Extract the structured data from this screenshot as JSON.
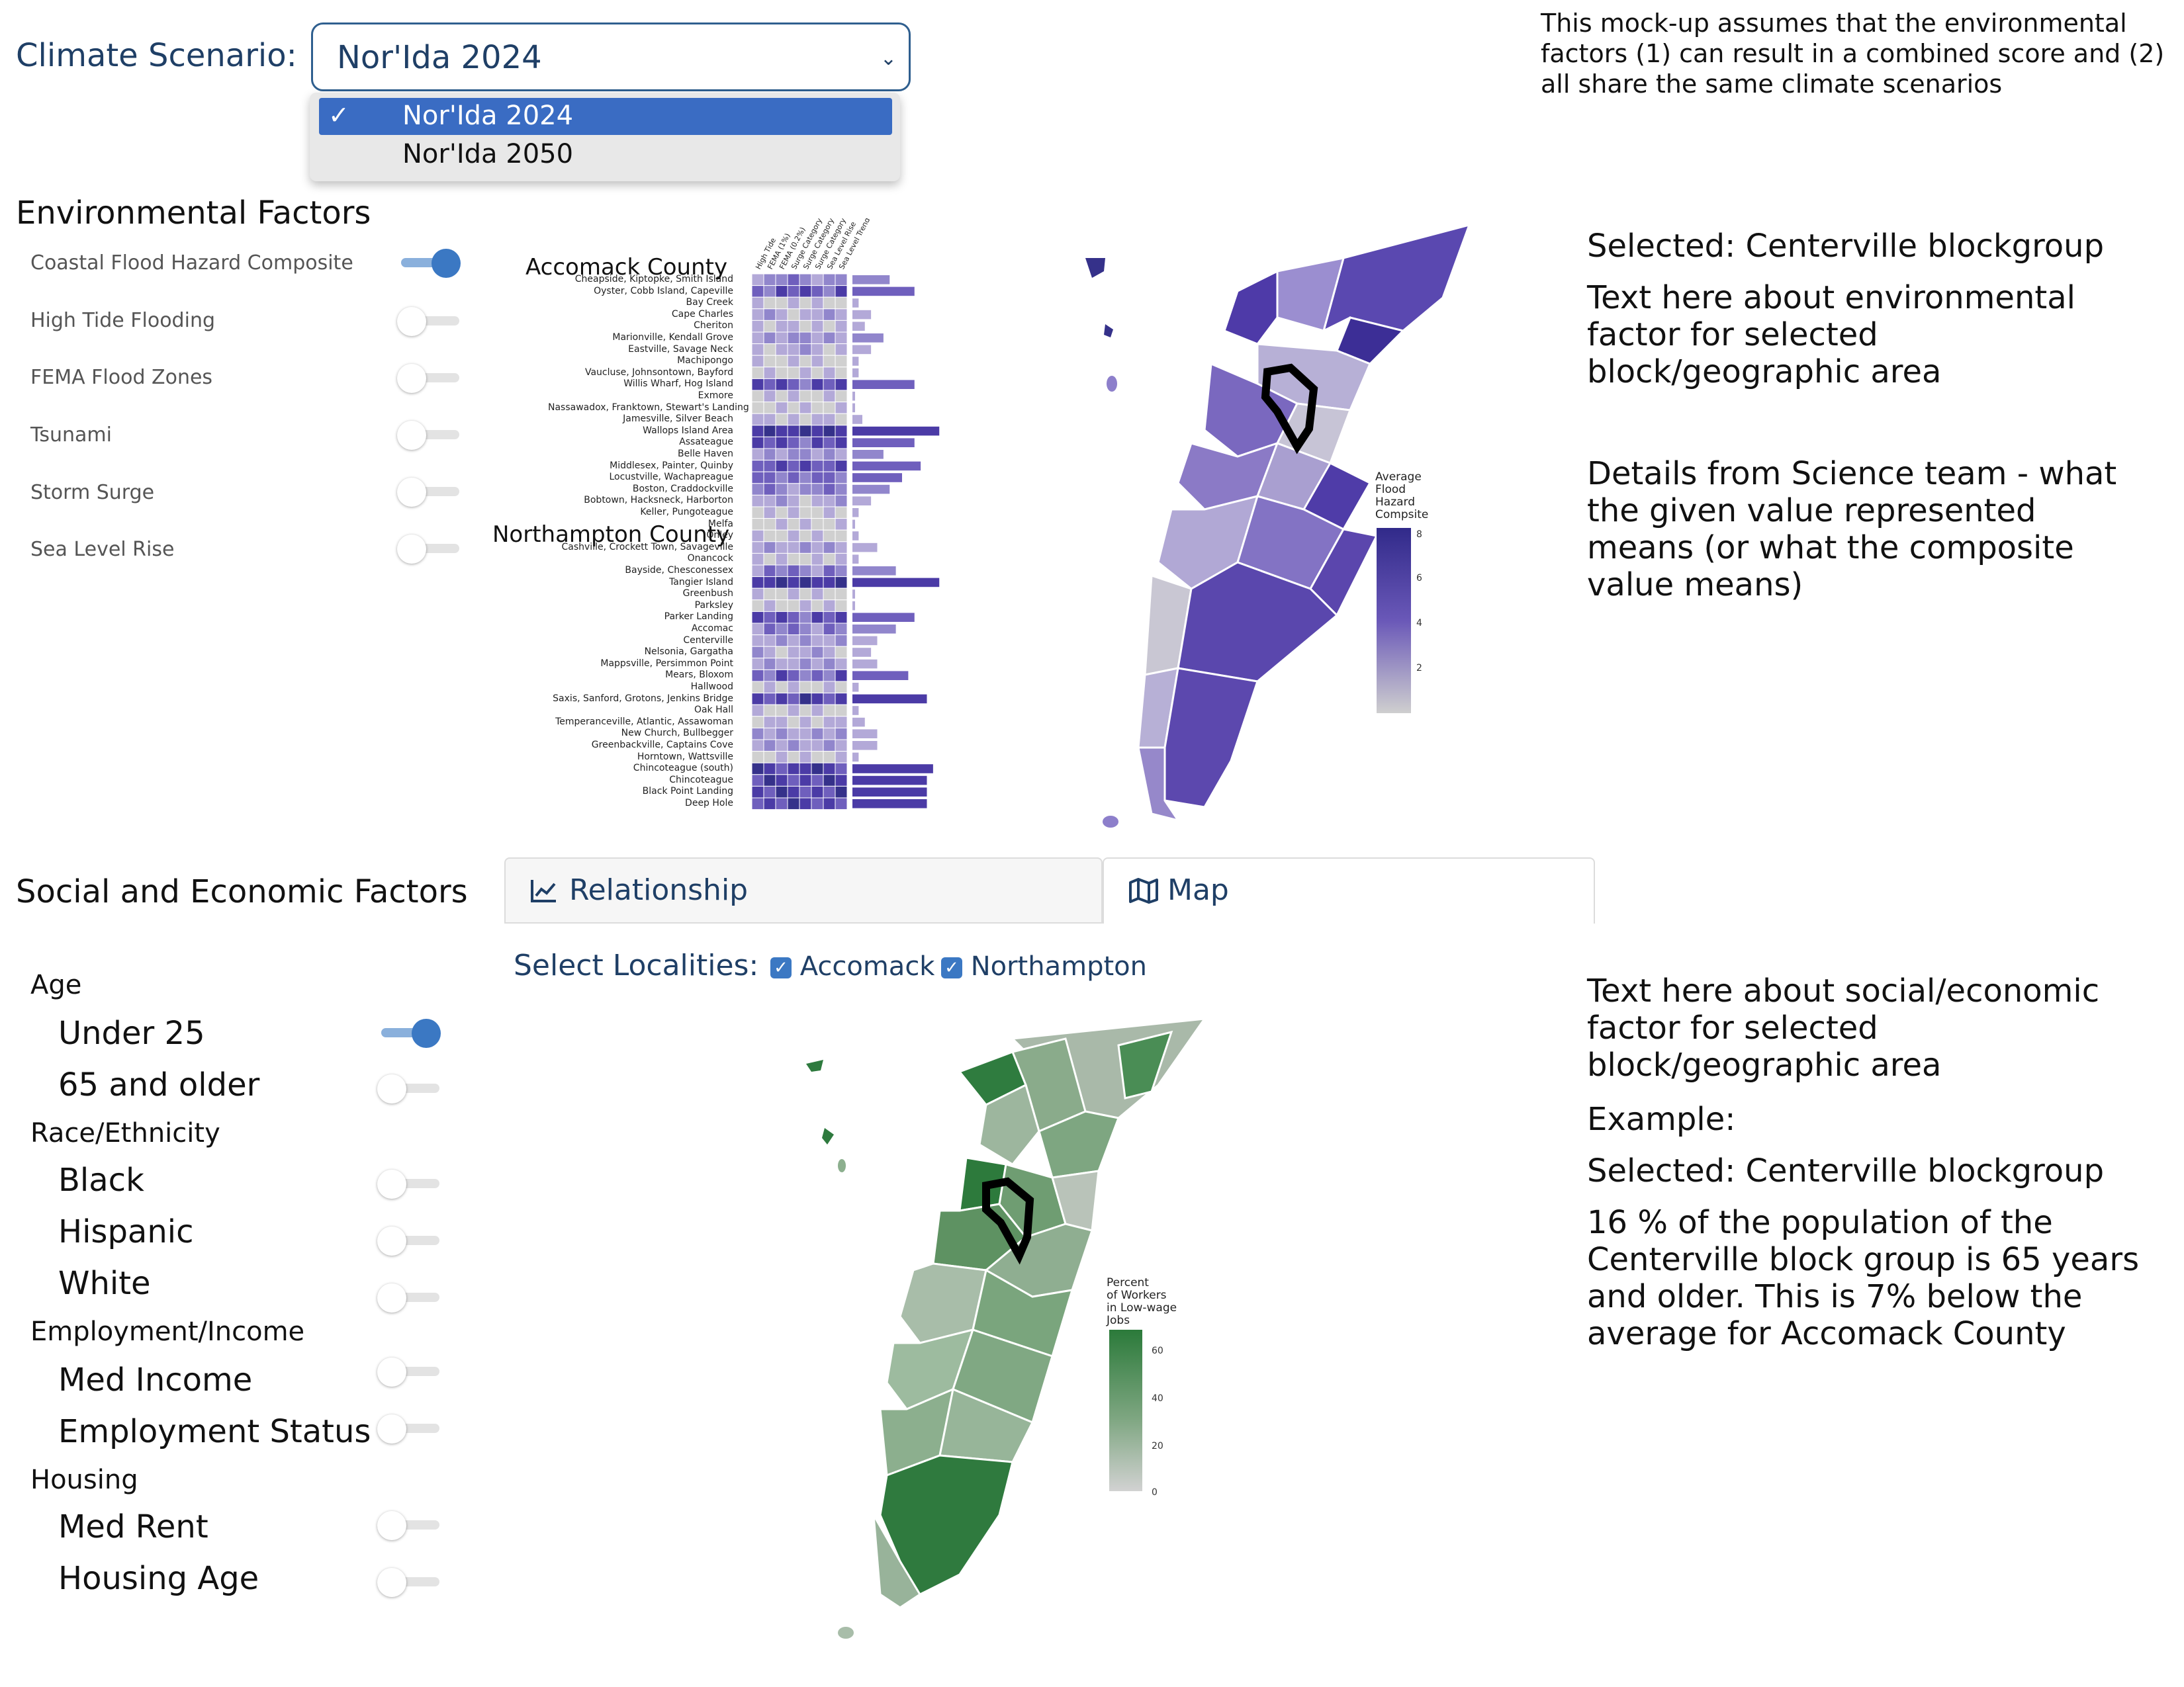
{
  "scenario": {
    "label": "Climate Scenario:",
    "selected": "Nor'Ida 2024",
    "options": [
      "Nor'Ida 2024",
      "Nor'Ida 2050"
    ]
  },
  "note": "This mock-up assumes that the environmental factors (1) can result in a combined score and (2) all share the same climate scenarios",
  "environmental": {
    "title": "Environmental Factors",
    "factors": [
      {
        "label": "Coastal Flood Hazard Composite",
        "on": true
      },
      {
        "label": "High Tide Flooding",
        "on": false
      },
      {
        "label": "FEMA Flood Zones",
        "on": false
      },
      {
        "label": "Tsunami",
        "on": false
      },
      {
        "label": "Storm Surge",
        "on": false
      },
      {
        "label": "Sea Level Rise",
        "on": false
      }
    ],
    "heatmap": {
      "county_a": "Accomack County",
      "county_b": "Northampton County",
      "columns": [
        "High Tide",
        "FEMA (1%)",
        "FEMA (0.2%)",
        "Surge Category 1",
        "Surge Category 2",
        "Surge Category 3",
        "Sea Level Rise",
        "Sea Level Trend"
      ],
      "rows": [
        "Cheapside, Kiptopke, Smith Island",
        "Oyster, Cobb Island, Capeville",
        "Bay Creek",
        "Cape Charles",
        "Cheriton",
        "Marionville, Kendall Grove",
        "Eastville, Savage Neck",
        "Machipongo",
        "Vaucluse, Johnsontown, Bayford",
        "Willis Wharf, Hog Island",
        "Exmore",
        "Nassawadox, Franktown, Stewart's Landing",
        "Jamesville, Silver Beach",
        "Wallops Island Area",
        "Assateague",
        "Belle Haven",
        "Middlesex, Painter, Quinby",
        "Locustville, Wachapreague",
        "Boston, Craddockville",
        "Bobtown, Hacksneck, Harborton",
        "Keller, Pungoteague",
        "Melfa",
        "Onley",
        "Cashville, Crockett Town, Savageville",
        "Onancock",
        "Bayside, Chesconessex",
        "Tangier Island",
        "Greenbush",
        "Parksley",
        "Parker Landing",
        "Accomac",
        "Centerville",
        "Nelsonia, Gargatha",
        "Mappsville, Persimmon Point",
        "Mears, Bloxom",
        "Hallwood",
        "Saxis, Sanford, Grotons, Jenkins Bridge",
        "Oak Hall",
        "Temperanceville, Atlantic, Assawoman",
        "New Church, Bullbegger",
        "Greenbackville, Captains Cove",
        "Horntown, Wattsville",
        "Chincoteague (south)",
        "Chincoteague",
        "Black Point Landing",
        "Deep Hole"
      ],
      "scores": [
        3,
        5,
        0.5,
        1.5,
        1,
        2.5,
        1.5,
        0.5,
        0.5,
        5,
        0.2,
        0.2,
        0.8,
        7,
        5,
        2.5,
        5.5,
        4,
        3,
        1.5,
        0.5,
        0.2,
        0.5,
        2,
        0.5,
        3.5,
        7,
        0.2,
        0.2,
        5,
        3.5,
        2,
        1.5,
        2,
        4.5,
        0.5,
        6,
        0.5,
        1,
        2,
        2,
        0.5,
        6.5,
        6,
        6,
        6
      ]
    },
    "map_legend": {
      "title": [
        "Average",
        "Flood",
        "Hazard",
        "Compsite"
      ],
      "ticks": [
        "8",
        "6",
        "4",
        "2"
      ]
    },
    "right_text": {
      "selected": "Selected: Centerville blockgroup",
      "about": "Text here about environmental factor for selected block/geographic area",
      "details": "Details from Science team - what the given value represented means (or what the composite value means)"
    }
  },
  "social": {
    "title": "Social and Economic Factors",
    "tabs": [
      {
        "label": "Relationship",
        "icon": "chart-line-icon"
      },
      {
        "label": "Map",
        "icon": "map-icon"
      }
    ],
    "active_tab": "Map",
    "localities_label": "Select Localities:",
    "localities": [
      {
        "label": "Accomack",
        "checked": true
      },
      {
        "label": "Northampton",
        "checked": true
      }
    ],
    "groups": [
      {
        "category": "Age",
        "items": [
          {
            "label": "Under 25",
            "on": true
          },
          {
            "label": "65 and older",
            "on": false
          }
        ]
      },
      {
        "category": "Race/Ethnicity",
        "items": [
          {
            "label": "Black",
            "on": false
          },
          {
            "label": "Hispanic",
            "on": false
          },
          {
            "label": "White",
            "on": false
          }
        ]
      },
      {
        "category": "Employment/Income",
        "items": [
          {
            "label": "Med Income",
            "on": false
          },
          {
            "label": "Employment Status",
            "on": false
          }
        ]
      },
      {
        "category": "Housing",
        "items": [
          {
            "label": "Med Rent",
            "on": false
          },
          {
            "label": "Housing Age",
            "on": false
          }
        ]
      }
    ],
    "map_legend": {
      "title": [
        "Percent",
        "of Workers",
        "in Low-wage",
        "Jobs"
      ],
      "ticks": [
        "60",
        "40",
        "20",
        "0"
      ]
    },
    "right_text": {
      "about": "Text here about social/economic factor for selected block/geographic area",
      "example": "Example:",
      "selected": "Selected: Centerville blockgroup",
      "detail": "16 % of the population of the Centerville block group is 65 years and older. This is 7% below the average for Accomack County"
    }
  },
  "colors": {
    "navy": "#1f3f66",
    "toggle_on": "#3b78c3",
    "purple_dark": "#35318a",
    "green_dark": "#2e7a3e"
  }
}
